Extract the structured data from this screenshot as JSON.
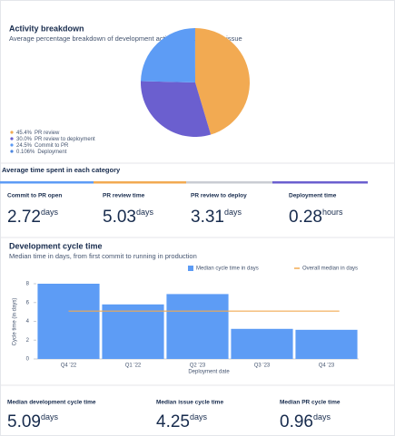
{
  "chart_data": [
    {
      "type": "pie",
      "title": "Activity breakdown",
      "subtitle": "Average percentage breakdown of development activities against a Jira issue",
      "categories": [
        "PR review",
        "PR review to deployment",
        "Commit to PR",
        "Deployment"
      ],
      "values": [
        45.4,
        30.0,
        24.5,
        0.106
      ],
      "value_labels": [
        "45.4%",
        "30.0%",
        "24.5%",
        "0.106%"
      ],
      "colors": [
        "#f2aa52",
        "#6b5fcf",
        "#5d9cf5",
        "#4c86e0"
      ],
      "legend": "bottom-left"
    },
    {
      "type": "bar",
      "title": "Development cycle time",
      "subtitle": "Median time in days, from first commit to running in production",
      "categories": [
        "Q4 '22",
        "Q1 '22",
        "Q2 '23",
        "Q3 '23",
        "Q4 '23"
      ],
      "series": [
        {
          "name": "Median cycle time in days",
          "color": "#5d9cf5",
          "values": [
            8.0,
            5.8,
            6.9,
            3.2,
            3.1
          ]
        }
      ],
      "median_line": {
        "name": "Overall median in days",
        "value": 5.09,
        "color": "#f2aa52"
      },
      "x_label": "Deployment date",
      "y_label": "Cycle time (in days)",
      "ylim": [
        0,
        8
      ],
      "yticks": [
        0,
        2,
        4,
        6,
        8
      ],
      "grid": false,
      "legend": "top-right"
    }
  ],
  "category_times": {
    "title": "Average time spent in each category",
    "items": [
      {
        "label": "Commit to PR open",
        "value": 2.72,
        "unit": "days"
      },
      {
        "label": "PR review time",
        "value": 5.03,
        "unit": "days"
      },
      {
        "label": "PR review to deploy",
        "value": 3.31,
        "unit": "days"
      },
      {
        "label": "Deployment time",
        "value": 0.28,
        "unit": "hours"
      }
    ]
  },
  "summary": {
    "items": [
      {
        "label": "Median development cycle time",
        "value": 5.09,
        "unit": "days"
      },
      {
        "label": "Median issue cycle time",
        "value": 4.25,
        "unit": "days"
      },
      {
        "label": "Median PR cycle time",
        "value": 0.96,
        "unit": "days"
      }
    ]
  }
}
